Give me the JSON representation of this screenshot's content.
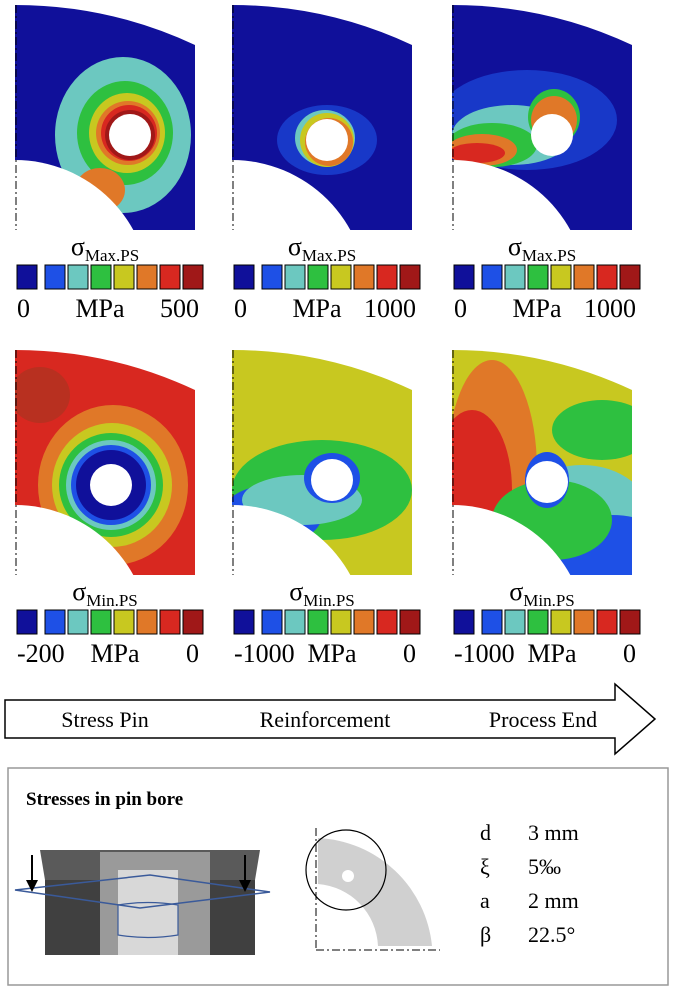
{
  "panels": [
    {
      "symbol": "σ",
      "subscript": "Max.PS",
      "min_label": "-",
      "unit": "MPa",
      "max_label": "500"
    },
    {
      "symbol": "σ",
      "subscript": "Max.PS",
      "min_label": "0",
      "unit": "MPa",
      "max_label": "1000"
    },
    {
      "symbol": "σ",
      "subscript": "Max.PS",
      "min_label": "0",
      "unit": "MPa",
      "max_label": "1000"
    },
    {
      "symbol": "σ",
      "subscript": "Min.PS",
      "min_label": "-200",
      "unit": "MPa",
      "max_label": "0"
    },
    {
      "symbol": "σ",
      "subscript": "Min.PS",
      "min_label": "-1000",
      "unit": "MPa",
      "max_label": "0"
    },
    {
      "symbol": "σ",
      "subscript": "Min.PS",
      "min_label": "-1000",
      "unit": "MPa",
      "max_label": "0"
    }
  ],
  "stages": [
    "Stress Pin",
    "Reinforcement",
    "Process End"
  ],
  "info": {
    "title": "Stresses in pin bore",
    "params": [
      [
        "d",
        "3 mm"
      ],
      [
        "ξ",
        "5‰"
      ],
      [
        "a",
        "2 mm"
      ],
      [
        "β",
        "22.5°"
      ]
    ]
  }
}
